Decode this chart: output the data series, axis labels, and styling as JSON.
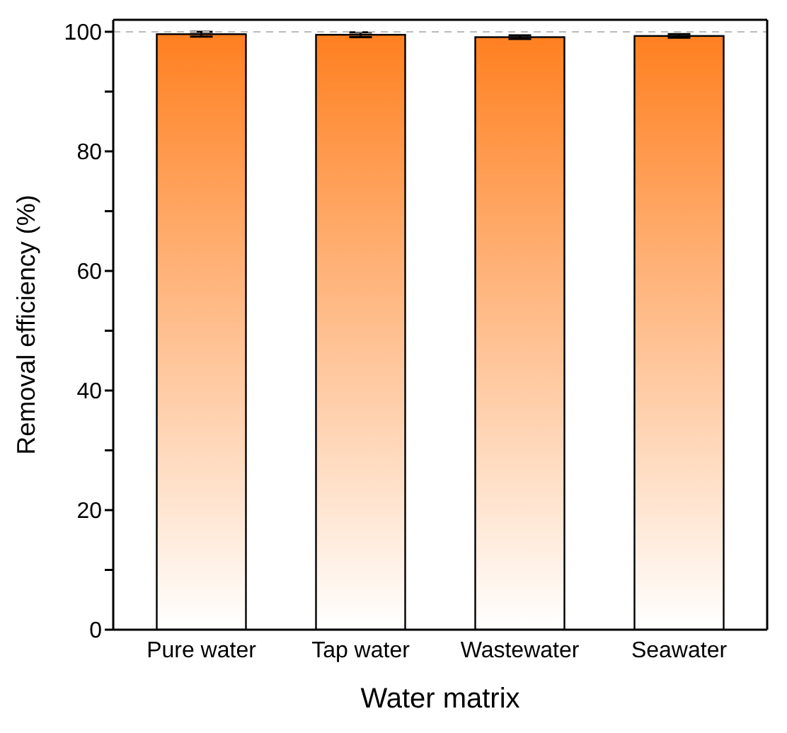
{
  "chart_data": {
    "type": "bar",
    "xlabel": "Water matrix",
    "ylabel": "Removal efficiency (%)",
    "categories": [
      "Pure water",
      "Tap water",
      "Wastewater",
      "Seawater"
    ],
    "values": [
      99.6,
      99.5,
      99.1,
      99.3
    ],
    "errors": [
      0.4,
      0.4,
      0.3,
      0.3
    ],
    "color": "#ff8020",
    "ylim": [
      0,
      102
    ],
    "yticks": [
      0,
      {
        "value": 10,
        "label": null
      },
      20,
      {
        "value": 30,
        "label": null
      },
      40,
      {
        "value": 50,
        "label": null
      },
      60,
      {
        "value": 70,
        "label": null
      },
      80,
      {
        "value": 90,
        "label": null
      },
      100
    ],
    "ref_lines": [
      {
        "axis": "y",
        "value": 100,
        "label": null,
        "color": "#bbbbbb",
        "line_style": "dashed"
      }
    ],
    "grid": false,
    "legend": false
  }
}
